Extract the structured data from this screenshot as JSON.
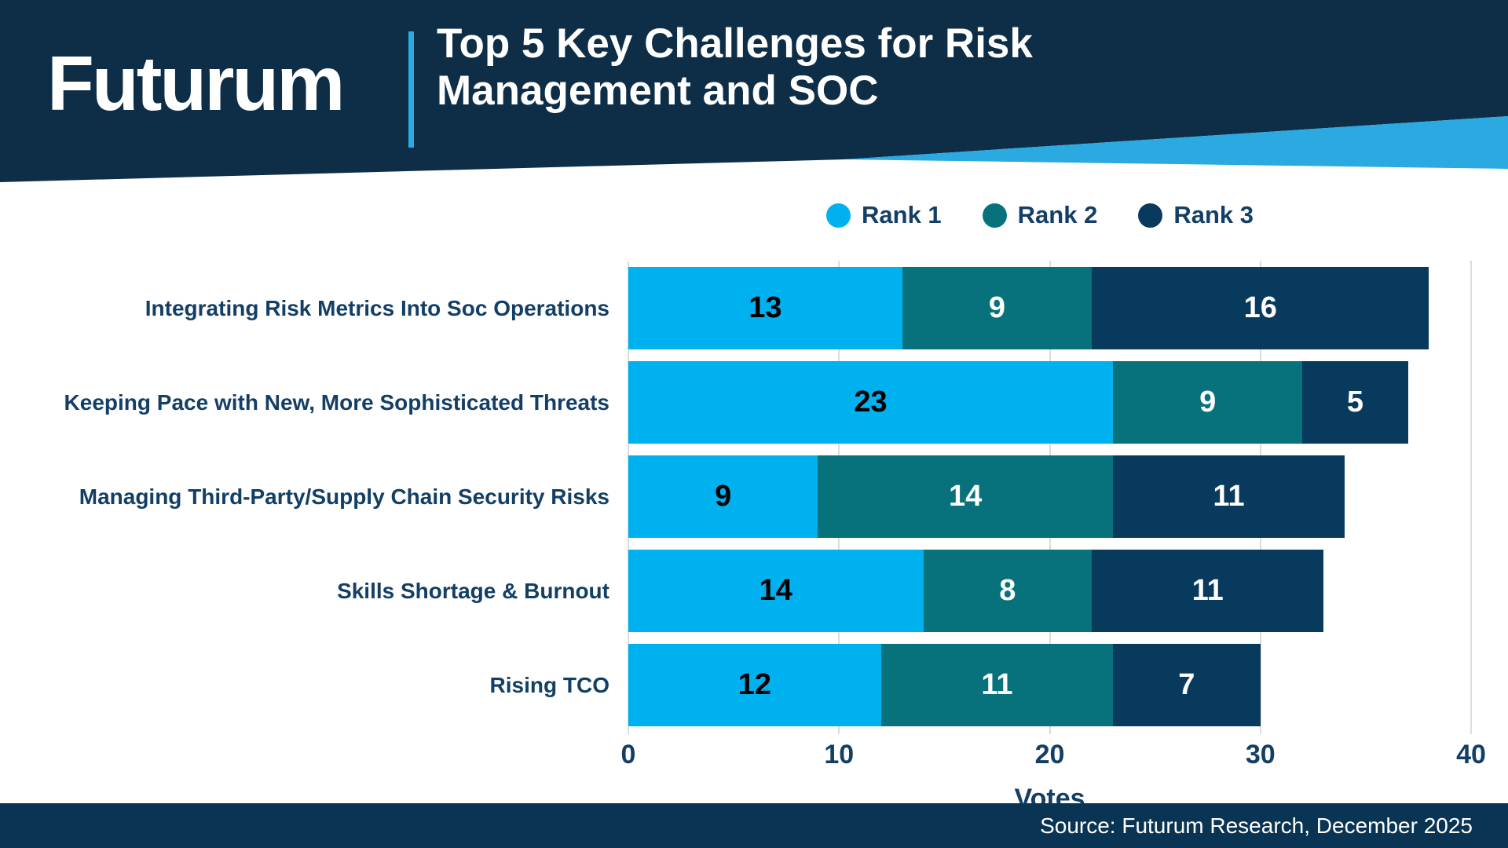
{
  "header": {
    "logo_text": "Futurum",
    "title_line1": "Top 5 Key Challenges for Risk",
    "title_line2": "Management and SOC"
  },
  "footer": {
    "source_text": "Source: Futurum Research, December 2025"
  },
  "colors": {
    "header_navy": "#0E2E47",
    "footer_navy": "#0A3453",
    "accent_light_blue": "#2BA9E1",
    "rank1_blue": "#00B1F0",
    "rank2_teal": "#07727B",
    "rank3_navy": "#083A5E",
    "text_navy": "#133E66",
    "gridline_gray": "#DCDCDC"
  },
  "chart_data": {
    "type": "bar",
    "orientation": "horizontal",
    "stacked": true,
    "title": "Top 5 Key Challenges for Risk Management and SOC",
    "categories": [
      "Integrating Risk Metrics Into Soc Operations",
      "Keeping Pace with New, More Sophisticated Threats",
      "Managing Third-Party/Supply Chain Security Risks",
      "Skills Shortage & Burnout",
      "Rising TCO"
    ],
    "series": [
      {
        "name": "Rank 1",
        "color": "#00B1F0",
        "label_color": "#000000",
        "values": [
          13,
          23,
          9,
          14,
          12
        ]
      },
      {
        "name": "Rank 2",
        "color": "#07727B",
        "label_color": "#FFFFFF",
        "values": [
          9,
          9,
          14,
          8,
          11
        ]
      },
      {
        "name": "Rank 3",
        "color": "#083A5E",
        "label_color": "#FFFFFF",
        "values": [
          16,
          5,
          11,
          11,
          7
        ]
      }
    ],
    "xlabel": "Votes",
    "xlim": [
      0,
      40
    ],
    "xticks": [
      0,
      10,
      20,
      30,
      40
    ],
    "grid": true,
    "legend_position": "top"
  }
}
